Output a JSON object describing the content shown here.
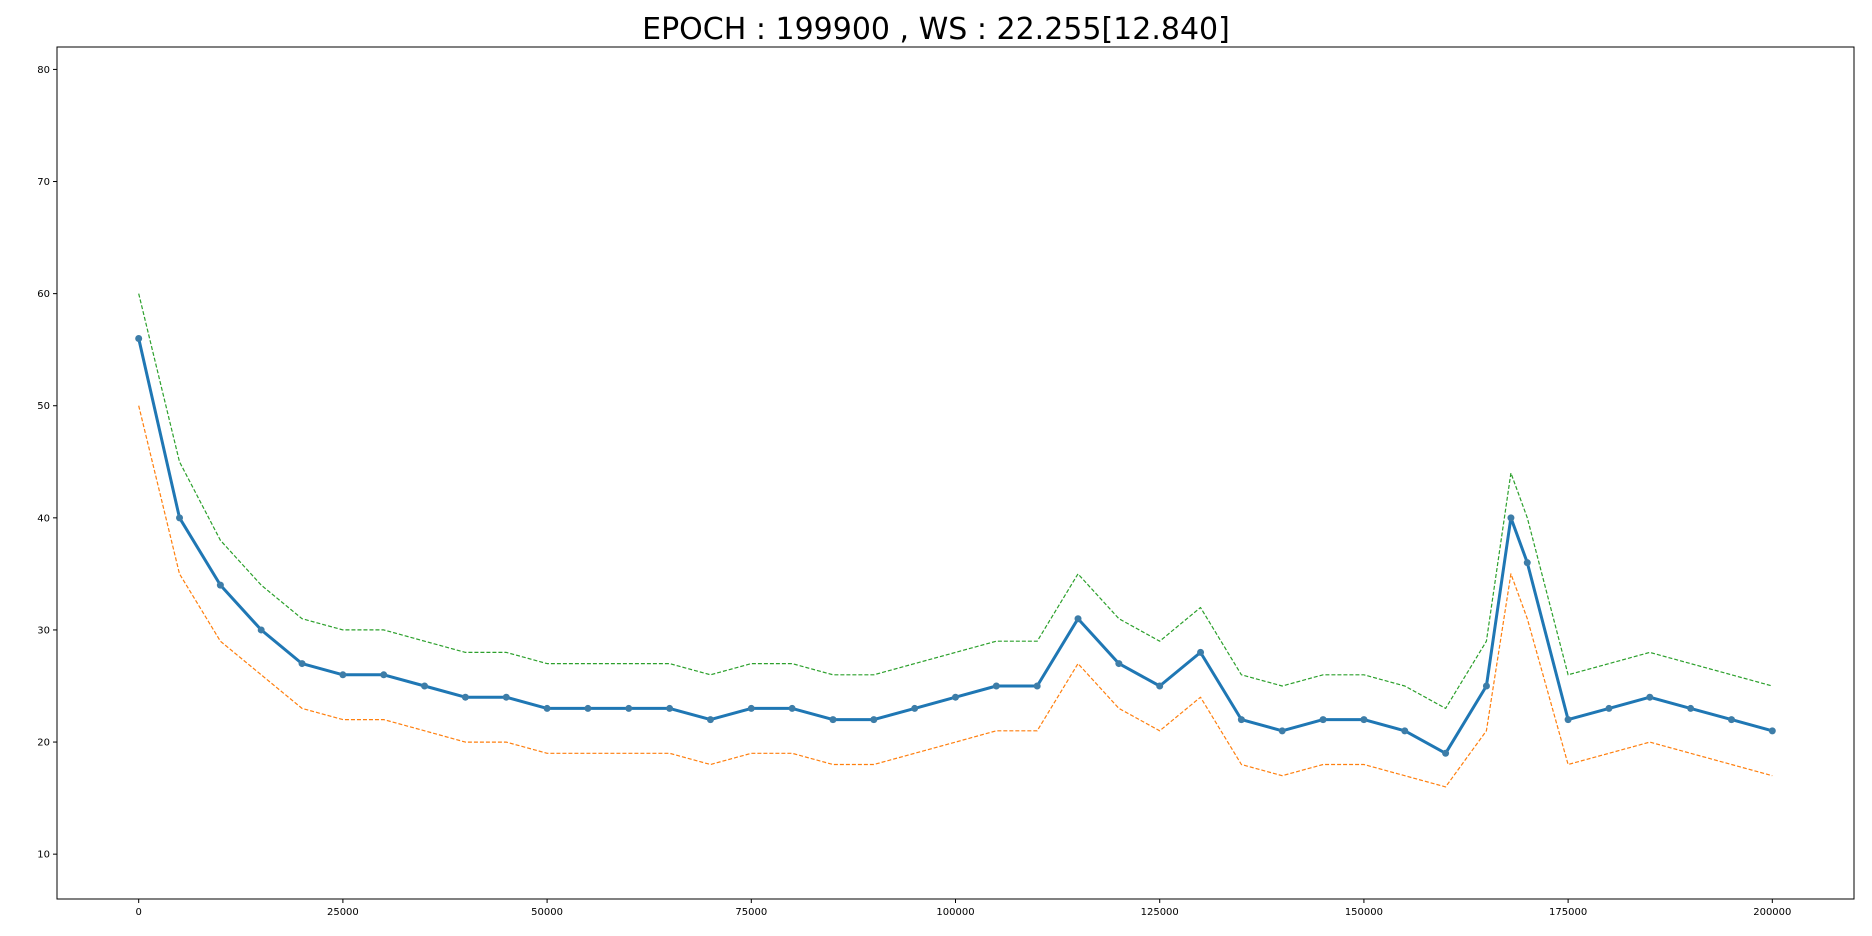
{
  "chart_data": {
    "type": "line",
    "title": "EPOCH : 199900 , WS : 22.255[12.840]",
    "xlabel": "",
    "ylabel": "",
    "xlim": [
      -10000,
      210000
    ],
    "ylim": [
      6,
      82
    ],
    "xticks": [
      0,
      25000,
      50000,
      75000,
      100000,
      125000,
      150000,
      175000,
      200000
    ],
    "yticks": [
      10,
      20,
      30,
      40,
      50,
      60,
      70,
      80
    ],
    "grid": false,
    "legend": "none",
    "colors": {
      "main": "#1f77b4",
      "lower": "#ff7f0e",
      "upper": "#2ca02c",
      "marker": "#3d7da8"
    },
    "x": [
      0,
      5000,
      10000,
      15000,
      20000,
      25000,
      30000,
      35000,
      40000,
      45000,
      50000,
      55000,
      60000,
      65000,
      70000,
      75000,
      80000,
      85000,
      90000,
      95000,
      100000,
      105000,
      110000,
      115000,
      120000,
      125000,
      130000,
      135000,
      140000,
      145000,
      150000,
      155000,
      160000,
      165000,
      168000,
      170000,
      175000,
      180000,
      185000,
      190000,
      195000,
      200000
    ],
    "series": [
      {
        "values": [
          56,
          40,
          34,
          30,
          27,
          26,
          26,
          25,
          24,
          24,
          23,
          23,
          23,
          23,
          22,
          23,
          23,
          22,
          22,
          23,
          24,
          25,
          25,
          31,
          27,
          25,
          28,
          22,
          21,
          22,
          22,
          21,
          19,
          25,
          40,
          36,
          22,
          23,
          24,
          23,
          22,
          21
        ]
      },
      {
        "values": [
          50,
          35,
          29,
          26,
          23,
          22,
          22,
          21,
          20,
          20,
          19,
          19,
          19,
          19,
          18,
          19,
          19,
          18,
          18,
          19,
          20,
          21,
          21,
          27,
          23,
          21,
          24,
          18,
          17,
          18,
          18,
          17,
          16,
          21,
          35,
          31,
          18,
          19,
          20,
          19,
          18,
          17
        ]
      },
      {
        "values": [
          60,
          45,
          38,
          34,
          31,
          30,
          30,
          29,
          28,
          28,
          27,
          27,
          27,
          27,
          26,
          27,
          27,
          26,
          26,
          27,
          28,
          29,
          29,
          35,
          31,
          29,
          32,
          26,
          25,
          26,
          26,
          25,
          23,
          29,
          44,
          40,
          26,
          27,
          28,
          27,
          26,
          25
        ]
      }
    ]
  }
}
